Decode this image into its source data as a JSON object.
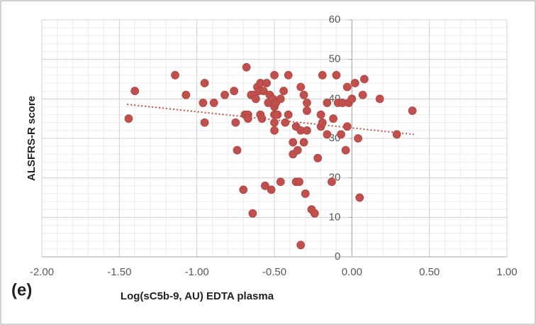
{
  "chart_data": {
    "type": "scatter",
    "x_label": "Log(sC5b-9, AU) EDTA plasma",
    "y_label": "ALSFRS-R score",
    "annotation": "(e)",
    "color": "#c0504d",
    "grid": true,
    "minor_grid": true,
    "xlim": [
      -2.0,
      1.0
    ],
    "ylim": [
      0,
      60
    ],
    "xticks": [
      {
        "value": -2.0,
        "label": "-2.00"
      },
      {
        "value": -1.5,
        "label": "-1.50"
      },
      {
        "value": -1.0,
        "label": "-1.00"
      },
      {
        "value": -0.5,
        "label": "-0.50"
      },
      {
        "value": 0,
        "label": "0.00"
      },
      {
        "value": 0.5,
        "label": "0.50"
      },
      {
        "value": 1.0,
        "label": "1.00"
      }
    ],
    "yticks": [
      0,
      10,
      20,
      30,
      40,
      50,
      60
    ],
    "x": [
      -1.44,
      -1.4,
      -1.14,
      -1.07,
      -0.95,
      -0.96,
      -0.95,
      -0.89,
      -0.82,
      -0.76,
      -0.75,
      -0.74,
      -0.7,
      -0.68,
      -0.69,
      -0.67,
      -0.67,
      -0.65,
      -0.64,
      -0.63,
      -0.62,
      -0.61,
      -0.6,
      -0.59,
      -0.59,
      -0.58,
      -0.57,
      -0.56,
      -0.55,
      -0.54,
      -0.53,
      -0.52,
      -0.51,
      -0.5,
      -0.5,
      -0.5,
      -0.5,
      -0.5,
      -0.49,
      -0.48,
      -0.46,
      -0.46,
      -0.44,
      -0.43,
      -0.41,
      -0.41,
      -0.38,
      -0.38,
      -0.36,
      -0.36,
      -0.35,
      -0.34,
      -0.33,
      -0.33,
      -0.33,
      -0.31,
      -0.31,
      -0.3,
      -0.29,
      -0.29,
      -0.29,
      -0.26,
      -0.24,
      -0.22,
      -0.2,
      -0.2,
      -0.19,
      -0.19,
      -0.16,
      -0.16,
      -0.13,
      -0.12,
      -0.1,
      -0.09,
      -0.07,
      -0.06,
      -0.04,
      -0.03,
      -0.03,
      -0.02,
      0.0,
      0.02,
      0.04,
      0.05,
      0.07,
      0.08,
      0.18,
      0.29,
      0.39
    ],
    "y": [
      35,
      42,
      46,
      41,
      44,
      39,
      34,
      39,
      41,
      42,
      34,
      27,
      17,
      48,
      36,
      36,
      35,
      41,
      11,
      41,
      40,
      43,
      42,
      44,
      36,
      35,
      42,
      18,
      44,
      39,
      41,
      17,
      40,
      46,
      38,
      36,
      34,
      32,
      39,
      36,
      40,
      19,
      42,
      34,
      46,
      36,
      26,
      29,
      19,
      33,
      27,
      19,
      32,
      43,
      3,
      41,
      29,
      16,
      39,
      37,
      32,
      12,
      11,
      25,
      33,
      36,
      46,
      34,
      31,
      39,
      19,
      35,
      46,
      39,
      31,
      39,
      27,
      33,
      43,
      39,
      40,
      44,
      30,
      15,
      41,
      45,
      40,
      31,
      37
    ],
    "trendline": {
      "x": [
        -1.45,
        0.4
      ],
      "y": [
        38.6,
        31.0
      ]
    }
  }
}
